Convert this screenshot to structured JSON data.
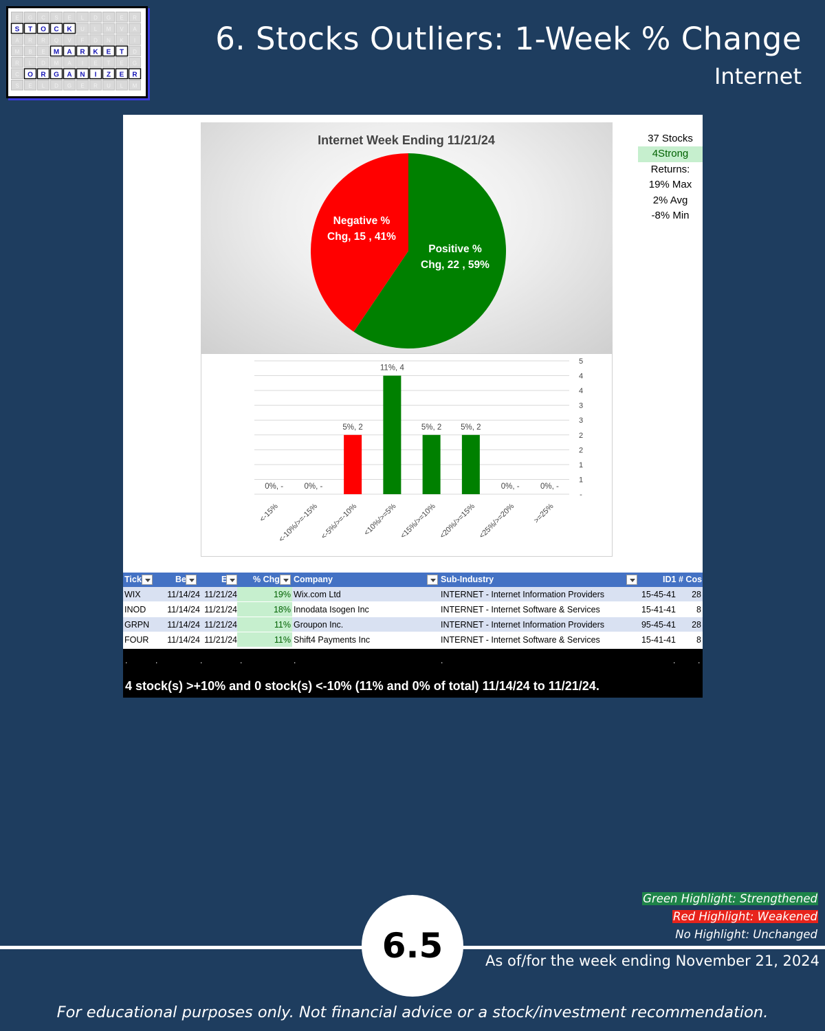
{
  "logo": {
    "line1": [
      "S",
      "T",
      "O",
      "C",
      "K"
    ],
    "line2": [
      "M",
      "A",
      "R",
      "K",
      "E",
      "T"
    ],
    "line3": [
      "O",
      "R",
      "G",
      "A",
      "N",
      "I",
      "Z",
      "E",
      "R"
    ],
    "filler": [
      "E",
      "G",
      "C",
      "S",
      "E",
      "L",
      "D",
      "G",
      "E",
      "R",
      "U",
      "L",
      "M",
      "V",
      "A",
      "A",
      "R",
      "R",
      "Q",
      "V",
      "F",
      "D",
      "N",
      "K",
      "I",
      "M",
      "B",
      "E",
      "D",
      "R",
      "L",
      "D",
      "M",
      "A",
      "I",
      "E",
      "T"
    ]
  },
  "header": {
    "title": "6. Stocks Outliers: 1-Week % Change",
    "subtitle": "Internet"
  },
  "stats": {
    "count": "37 Stocks",
    "strong": "4Strong",
    "returns_label": "Returns:",
    "max": "19% Max",
    "avg": "2% Avg",
    "min": "-8% Min"
  },
  "chart_data": [
    {
      "type": "pie",
      "title": "Internet Week Ending 11/21/24",
      "slices": [
        {
          "label": "Positive % Chg",
          "value": 22,
          "percent": 59,
          "color": "#008000",
          "label_line1": "Positive %",
          "label_line2": "Chg,  22 , 59%"
        },
        {
          "label": "Negative % Chg",
          "value": 15,
          "percent": 41,
          "color": "#ff0000",
          "label_line1": "Negative %",
          "label_line2": "Chg,  15 , 41%"
        }
      ]
    },
    {
      "type": "bar",
      "categories": [
        "<-15%",
        "<-10%/>=-15%",
        "<-5%/>=-10%",
        "<10%/>=5%",
        "<15%/>=10%",
        "<20%/>=15%",
        "<25%/>=20%",
        ">=25%"
      ],
      "values": [
        0,
        0,
        2,
        4,
        2,
        2,
        0,
        0
      ],
      "data_labels": [
        "0%,  -",
        "0%,  -",
        "5%,  2",
        "11%,  4",
        "5%,  2",
        "5%,  2",
        "0%,  -",
        "0%,  -"
      ],
      "colors": [
        "#ff0000",
        "#ff0000",
        "#ff0000",
        "#008000",
        "#008000",
        "#008000",
        "#008000",
        "#008000"
      ],
      "ylim": [
        0,
        4.5
      ],
      "yticks": [
        0,
        0.5,
        1,
        1.5,
        2,
        2.5,
        3,
        3.5,
        4,
        4.5
      ],
      "ytick_labels": [
        "-",
        "1",
        "1",
        "2",
        "2",
        "3",
        "3",
        "4",
        "4",
        "5"
      ],
      "grid": true
    }
  ],
  "table": {
    "headers": [
      "Tick",
      "Be",
      "E",
      "% Chg",
      "Company",
      "Sub-Industry",
      "ID1",
      "# Cos"
    ],
    "rows": [
      [
        "WIX",
        "11/14/24",
        "11/21/24",
        "19%",
        "Wix.com Ltd",
        "INTERNET - Internet Information Providers",
        "15-45-41",
        "28"
      ],
      [
        "INOD",
        "11/14/24",
        "11/21/24",
        "18%",
        "Innodata Isogen Inc",
        "INTERNET - Internet Software & Services",
        "15-41-41",
        "8"
      ],
      [
        "GRPN",
        "11/14/24",
        "11/21/24",
        "11%",
        "Groupon Inc.",
        "INTERNET - Internet Information Providers",
        "95-45-41",
        "28"
      ],
      [
        "FOUR",
        "11/14/24",
        "11/21/24",
        "11%",
        "Shift4 Payments Inc",
        "INTERNET - Internet Software & Services",
        "15-41-41",
        "8"
      ]
    ]
  },
  "summary": {
    "dot": ".",
    "text": "4 stock(s) >+10% and 0 stock(s) <-10% (11% and 0% of total) 11/14/24 to 11/21/24."
  },
  "legend": {
    "green": "Green Highlight: Strengthened",
    "red": "Red Highlight: Weakened",
    "none": "No Highlight: Unchanged"
  },
  "page_number": "6.5",
  "as_of": "As of/for the week ending November 21, 2024",
  "disclaimer": "For educational purposes only. Not financial advice or a stock/investment recommendation."
}
